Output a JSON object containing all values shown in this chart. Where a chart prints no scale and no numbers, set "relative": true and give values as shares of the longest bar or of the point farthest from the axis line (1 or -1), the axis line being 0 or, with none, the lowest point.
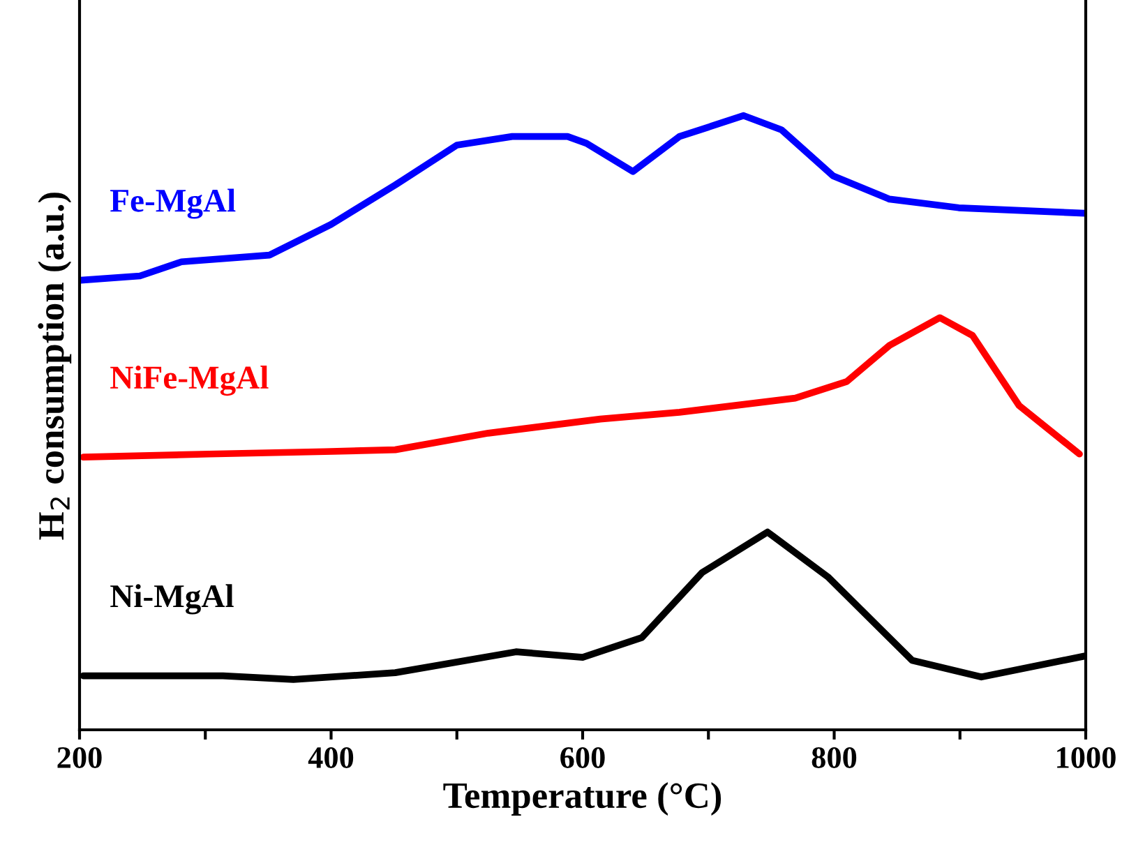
{
  "chart_data": {
    "type": "line",
    "relative": true,
    "xlabel": "Temperature (°C)",
    "ylabel": "H$_{2}$ consumption (a.u.)",
    "xlim": [
      200,
      1000
    ],
    "xticks": [
      200,
      {
        "value": 300,
        "label": null
      },
      400,
      {
        "value": 500,
        "label": null
      },
      600,
      {
        "value": 700,
        "label": null
      },
      800,
      {
        "value": 900,
        "label": null
      },
      1000
    ],
    "grid": false,
    "legend": false,
    "marker": "none",
    "line_style": "solid",
    "tick_labels": "x",
    "series": [
      {
        "name": "Fe-MgAl",
        "color": "#0000ff",
        "x": [
          201,
          248,
          281,
          351,
          400,
          451,
          500,
          544,
          588,
          603,
          640,
          677,
          728,
          758,
          799,
          844,
          899,
          999
        ],
        "values": [
          0.732,
          0.739,
          0.762,
          0.773,
          0.823,
          0.887,
          0.952,
          0.966,
          0.966,
          0.955,
          0.909,
          0.966,
          1.0,
          0.977,
          0.902,
          0.864,
          0.85,
          0.841
        ]
      },
      {
        "name": "NiFe-MgAl",
        "color": "#ff0000",
        "x": [
          203,
          303,
          395,
          451,
          525,
          614,
          677,
          769,
          810,
          844,
          884,
          910,
          947,
          995
        ],
        "values": [
          0.444,
          0.449,
          0.453,
          0.456,
          0.483,
          0.506,
          0.517,
          0.54,
          0.567,
          0.626,
          0.671,
          0.642,
          0.528,
          0.449
        ]
      },
      {
        "name": "Ni-MgAl",
        "color": "#000000",
        "x": [
          203,
          314,
          370,
          451,
          547,
          600,
          647,
          695,
          747,
          795,
          862,
          917,
          999
        ],
        "values": [
          0.088,
          0.088,
          0.082,
          0.093,
          0.127,
          0.118,
          0.15,
          0.256,
          0.322,
          0.249,
          0.113,
          0.086,
          0.12
        ]
      }
    ]
  }
}
